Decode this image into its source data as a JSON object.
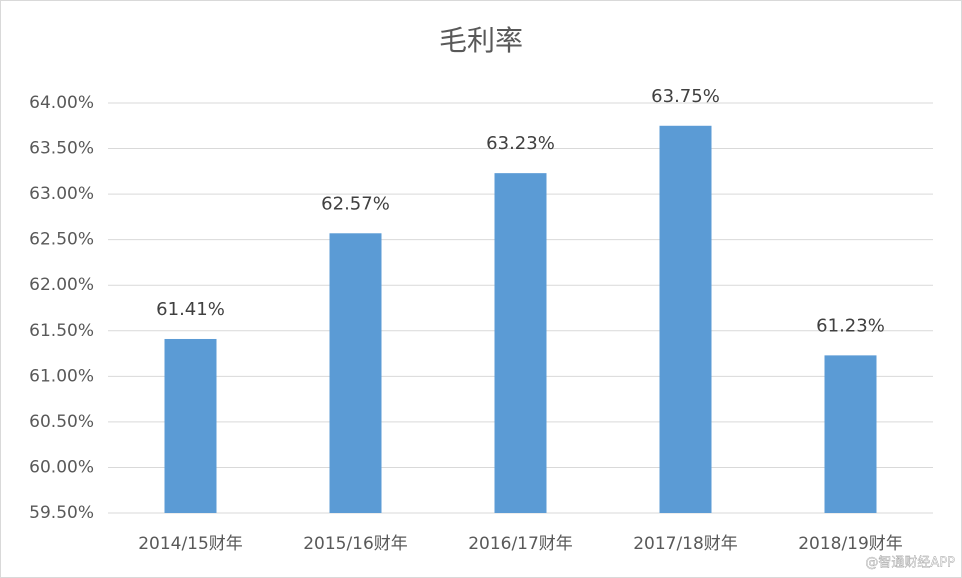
{
  "chart_data": {
    "type": "bar",
    "title": "毛利率",
    "categories": [
      "2014/15财年",
      "2015/16财年",
      "2016/17财年",
      "2017/18财年",
      "2018/19财年"
    ],
    "values": [
      61.41,
      62.57,
      63.23,
      63.75,
      61.23
    ],
    "value_labels": [
      "61.41%",
      "62.57%",
      "63.23%",
      "63.75%",
      "61.23%"
    ],
    "color": "#5b9bd5",
    "ylim": [
      59.5,
      64.0
    ],
    "yticks": [
      {
        "value": 59.5,
        "label": "59.50%"
      },
      {
        "value": 60.0,
        "label": "60.00%"
      },
      {
        "value": 60.5,
        "label": "60.50%"
      },
      {
        "value": 61.0,
        "label": "61.00%"
      },
      {
        "value": 61.5,
        "label": "61.50%"
      },
      {
        "value": 62.0,
        "label": "62.00%"
      },
      {
        "value": 62.5,
        "label": "62.50%"
      },
      {
        "value": 63.0,
        "label": "63.00%"
      },
      {
        "value": 63.5,
        "label": "63.50%"
      },
      {
        "value": 64.0,
        "label": "64.00%"
      }
    ],
    "grid": true,
    "watermark": "@智通财经APP"
  }
}
